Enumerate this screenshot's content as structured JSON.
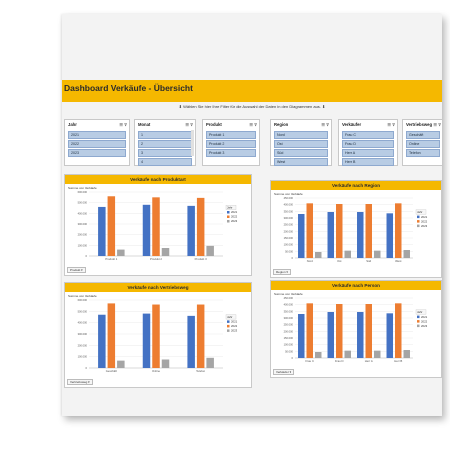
{
  "title": "Dashboard Verkäufe - Übersicht",
  "hint": "Wählen Sie hier Ihre Filter für die Auswahl der Daten in den Diagrammen aus.",
  "colors": {
    "accent": "#f5b800",
    "s2021": "#4472c4",
    "s2022": "#ed7d31",
    "s2023": "#a5a5a5"
  },
  "slicers": [
    {
      "id": "jahr",
      "title": "Jahr",
      "items": [
        "2021",
        "2022",
        "2023"
      ]
    },
    {
      "id": "monat",
      "title": "Monat",
      "items": [
        "1",
        "2",
        "3",
        "4"
      ]
    },
    {
      "id": "produkt",
      "title": "Produkt",
      "items": [
        "Produkt 1",
        "Produkt 2",
        "Produkt 3"
      ]
    },
    {
      "id": "region",
      "title": "Region",
      "items": [
        "Nord",
        "Ost",
        "Süd",
        "West"
      ]
    },
    {
      "id": "verkaeufer",
      "title": "Verkäufer",
      "items": [
        "Frau C",
        "Frau D",
        "Herr A",
        "Herr B"
      ]
    },
    {
      "id": "vertriebsweg",
      "title": "Vertriebsweg",
      "items": [
        "Geschäft",
        "Online",
        "Telefon"
      ]
    }
  ],
  "chart_data": [
    {
      "type": "bar",
      "title": "Verkäufe nach Produktart",
      "measure": "Summe von Verkäufe",
      "filter_label": "Produkt",
      "legend_title": "Jahr",
      "categories": [
        "Produkt 1",
        "Produkt 2",
        "Produkt 3"
      ],
      "series": [
        {
          "name": "2021",
          "values": [
            460000,
            480000,
            470000
          ]
        },
        {
          "name": "2022",
          "values": [
            560000,
            550000,
            545000
          ]
        },
        {
          "name": "2023",
          "values": [
            60000,
            75000,
            95000
          ]
        }
      ],
      "ylim": [
        0,
        600000
      ],
      "yticks": [
        "600.000",
        "500.000",
        "400.000",
        "300.000",
        "200.000",
        "100.000",
        "0"
      ]
    },
    {
      "type": "bar",
      "title": "Verkäufe nach Region",
      "measure": "Summe von Verkäufe",
      "filter_label": "Region",
      "legend_title": "Jahr",
      "categories": [
        "Nord",
        "Ost",
        "Süd",
        "West"
      ],
      "series": [
        {
          "name": "2021",
          "values": [
            330000,
            345000,
            345000,
            335000
          ]
        },
        {
          "name": "2022",
          "values": [
            410000,
            405000,
            405000,
            410000
          ]
        },
        {
          "name": "2023",
          "values": [
            45000,
            55000,
            55000,
            60000
          ]
        }
      ],
      "ylim": [
        0,
        450000
      ],
      "yticks": [
        "450.000",
        "400.000",
        "350.000",
        "300.000",
        "250.000",
        "200.000",
        "150.000",
        "100.000",
        "50.000",
        "0"
      ]
    },
    {
      "type": "bar",
      "title": "Verkäufe nach Vertriebsweg",
      "measure": "Summe von Verkäufe",
      "filter_label": "Vertriebsweg",
      "legend_title": "Jahr",
      "categories": [
        "Geschäft",
        "Online",
        "Telefon"
      ],
      "series": [
        {
          "name": "2021",
          "values": [
            470000,
            480000,
            460000
          ]
        },
        {
          "name": "2022",
          "values": [
            570000,
            560000,
            560000
          ]
        },
        {
          "name": "2023",
          "values": [
            65000,
            75000,
            90000
          ]
        }
      ],
      "ylim": [
        0,
        600000
      ],
      "yticks": [
        "600.000",
        "500.000",
        "400.000",
        "300.000",
        "200.000",
        "100.000",
        "0"
      ]
    },
    {
      "type": "bar",
      "title": "Verkäufe nach Person",
      "measure": "Summe von Verkäufe",
      "filter_label": "Verkäufer",
      "legend_title": "Jahr",
      "categories": [
        "Frau C",
        "Frau D",
        "Herr A",
        "Herr B"
      ],
      "series": [
        {
          "name": "2021",
          "values": [
            330000,
            345000,
            345000,
            335000
          ]
        },
        {
          "name": "2022",
          "values": [
            410000,
            405000,
            405000,
            410000
          ]
        },
        {
          "name": "2023",
          "values": [
            45000,
            55000,
            55000,
            60000
          ]
        }
      ],
      "ylim": [
        0,
        450000
      ],
      "yticks": [
        "450.000",
        "400.000",
        "350.000",
        "300.000",
        "250.000",
        "200.000",
        "150.000",
        "100.000",
        "50.000",
        "0"
      ]
    }
  ]
}
